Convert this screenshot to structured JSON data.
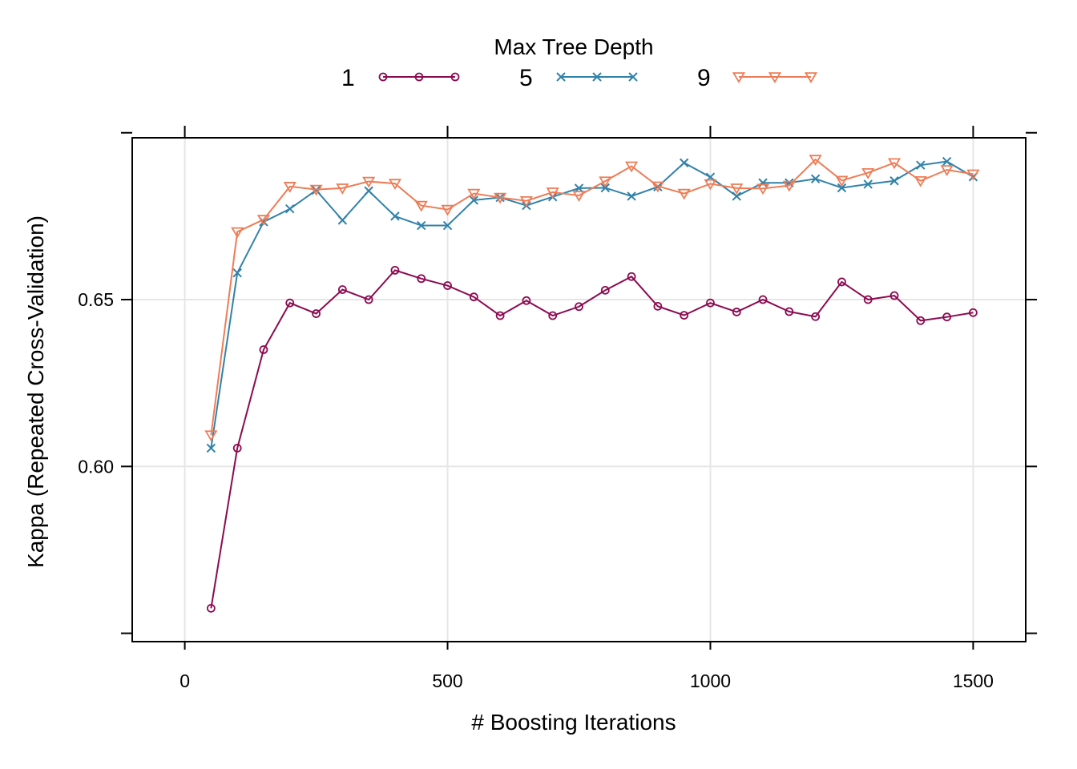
{
  "chart_data": {
    "type": "line",
    "xlabel": "# Boosting Iterations",
    "ylabel": "Kappa (Repeated Cross-Validation)",
    "legend_title": "Max Tree Depth",
    "legend_position": "top",
    "grid": true,
    "xlim": [
      -100,
      1600
    ],
    "ylim": [
      0.5475,
      0.6985
    ],
    "xticks": [
      0,
      500,
      1000,
      1500
    ],
    "yticks": [
      0.6,
      0.65
    ],
    "ytick_labels": [
      "0.60",
      "0.65"
    ],
    "x": [
      50,
      100,
      150,
      200,
      250,
      300,
      350,
      400,
      450,
      500,
      550,
      600,
      650,
      700,
      750,
      800,
      850,
      900,
      950,
      1000,
      1050,
      1100,
      1150,
      1200,
      1250,
      1300,
      1350,
      1400,
      1450,
      1500
    ],
    "series": [
      {
        "name": "1",
        "color": "#8B0A50",
        "marker": "circle",
        "values": [
          0.5575,
          0.6055,
          0.635,
          0.649,
          0.6458,
          0.653,
          0.65,
          0.6588,
          0.6563,
          0.6542,
          0.6508,
          0.6452,
          0.6497,
          0.6452,
          0.6479,
          0.6528,
          0.6569,
          0.648,
          0.6453,
          0.649,
          0.6463,
          0.65,
          0.6464,
          0.6449,
          0.6553,
          0.65,
          0.6512,
          0.6437,
          0.6448,
          0.6461
        ]
      },
      {
        "name": "5",
        "color": "#3182A9",
        "marker": "x",
        "values": [
          0.6055,
          0.658,
          0.6733,
          0.6772,
          0.6828,
          0.6738,
          0.6826,
          0.675,
          0.6722,
          0.6722,
          0.6798,
          0.6806,
          0.6782,
          0.6808,
          0.6834,
          0.6835,
          0.681,
          0.6838,
          0.691,
          0.6867,
          0.681,
          0.685,
          0.685,
          0.6862,
          0.6835,
          0.6846,
          0.6856,
          0.6903,
          0.6914,
          0.6868
        ]
      },
      {
        "name": "9",
        "color": "#EE7C56",
        "marker": "triangle-down",
        "values": [
          0.6094,
          0.6703,
          0.674,
          0.6839,
          0.683,
          0.6834,
          0.6854,
          0.6848,
          0.6782,
          0.677,
          0.6818,
          0.6806,
          0.6796,
          0.6822,
          0.6812,
          0.6855,
          0.69,
          0.684,
          0.6818,
          0.6847,
          0.6834,
          0.6833,
          0.6842,
          0.692,
          0.6857,
          0.688,
          0.691,
          0.6856,
          0.6889,
          0.6876
        ]
      }
    ]
  }
}
